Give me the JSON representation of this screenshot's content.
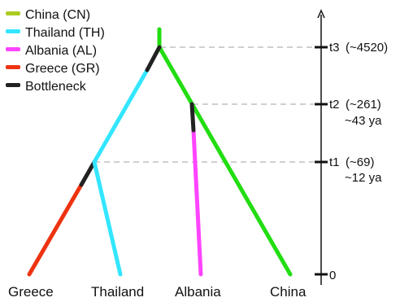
{
  "colors": {
    "china": "#22dd11",
    "thailand": "#33e6ff",
    "albania": "#ff44ff",
    "greece": "#ee3311",
    "bottleneck": "#222222",
    "china_legend": "#aacc22"
  },
  "legend": [
    {
      "label": "China (CN)",
      "color_key": "china_legend"
    },
    {
      "label": "Thailand (TH)",
      "color_key": "thailand"
    },
    {
      "label": "Albania (AL)",
      "color_key": "albania"
    },
    {
      "label": "Greece (GR)",
      "color_key": "greece"
    },
    {
      "label": "Bottleneck",
      "color_key": "bottleneck"
    }
  ],
  "timeline": {
    "t3": {
      "name": "t3",
      "value": "(~4520)"
    },
    "t2": {
      "name": "t2",
      "value": "(~261)",
      "ya": "~43 ya"
    },
    "t1": {
      "name": "t1",
      "value": "(~69)",
      "ya": "~12 ya"
    },
    "zero": "0"
  },
  "leaves": {
    "greece": "Greece",
    "thailand": "Thailand",
    "albania": "Albania",
    "china": "China"
  }
}
